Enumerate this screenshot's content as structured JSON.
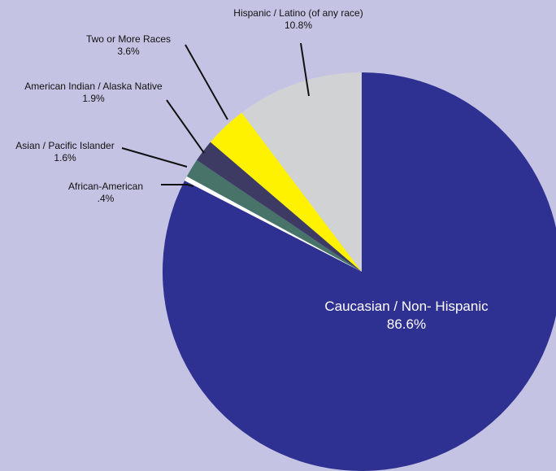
{
  "chart_data": {
    "type": "pie",
    "title": "",
    "slices": [
      {
        "label": "Caucasian / Non- Hispanic",
        "value_text": "86.6%",
        "value": 86.6,
        "color": "#2e3192"
      },
      {
        "label": "African-American",
        "value_text": ".4%",
        "value": 0.4,
        "color": "#ffffff"
      },
      {
        "label": "Asian / Pacific Islander",
        "value_text": "1.6%",
        "value": 1.6,
        "color": "#477369"
      },
      {
        "label": "American Indian / Alaska Native",
        "value_text": "1.9%",
        "value": 1.9,
        "color": "#3d3a64"
      },
      {
        "label": "Two or More Races",
        "value_text": "3.6%",
        "value": 3.6,
        "color": "#fff200"
      },
      {
        "label": "Hispanic / Latino (of any race)",
        "value_text": "10.8%",
        "value": 10.8,
        "color": "#d1d2d4"
      }
    ],
    "background": "#c5c3e3"
  }
}
